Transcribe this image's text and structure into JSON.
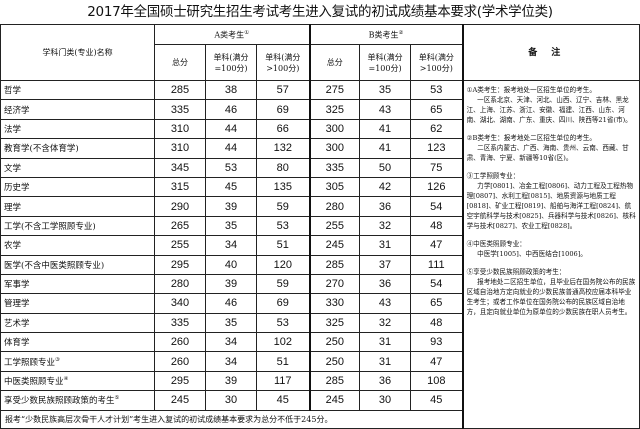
{
  "title": "2017年全国硕士研究生招生考试考生进入复试的初试成绩基本要求(学术学位类)",
  "header": {
    "name_col": "学科门类(专业)名称",
    "group_a": "A类考生",
    "group_a_mark": "①",
    "group_b": "B类考生",
    "group_b_mark": "②",
    "total": "总分",
    "single_100": "单科(满分=100分)",
    "single_gt100": "单科(满分>100分)",
    "notes": "备注"
  },
  "rows": [
    {
      "name": "哲学",
      "mark": "",
      "a": [
        "285",
        "38",
        "57"
      ],
      "b": [
        "275",
        "35",
        "53"
      ]
    },
    {
      "name": "经济学",
      "mark": "",
      "a": [
        "335",
        "46",
        "69"
      ],
      "b": [
        "325",
        "43",
        "65"
      ]
    },
    {
      "name": "法学",
      "mark": "",
      "a": [
        "310",
        "44",
        "66"
      ],
      "b": [
        "300",
        "41",
        "62"
      ]
    },
    {
      "name": "教育学(不含体育学)",
      "mark": "",
      "a": [
        "310",
        "44",
        "132"
      ],
      "b": [
        "300",
        "41",
        "123"
      ]
    },
    {
      "name": "文学",
      "mark": "",
      "a": [
        "345",
        "53",
        "80"
      ],
      "b": [
        "335",
        "50",
        "75"
      ]
    },
    {
      "name": "历史学",
      "mark": "",
      "a": [
        "315",
        "45",
        "135"
      ],
      "b": [
        "305",
        "42",
        "126"
      ]
    },
    {
      "name": "理学",
      "mark": "",
      "a": [
        "290",
        "39",
        "59"
      ],
      "b": [
        "280",
        "36",
        "54"
      ]
    },
    {
      "name": "工学(不含工学照顾专业)",
      "mark": "",
      "a": [
        "265",
        "35",
        "53"
      ],
      "b": [
        "255",
        "32",
        "48"
      ]
    },
    {
      "name": "农学",
      "mark": "",
      "a": [
        "255",
        "34",
        "51"
      ],
      "b": [
        "245",
        "31",
        "47"
      ]
    },
    {
      "name": "医学(不含中医类照顾专业)",
      "mark": "",
      "a": [
        "295",
        "40",
        "120"
      ],
      "b": [
        "285",
        "37",
        "111"
      ]
    },
    {
      "name": "军事学",
      "mark": "",
      "a": [
        "280",
        "39",
        "59"
      ],
      "b": [
        "270",
        "36",
        "54"
      ]
    },
    {
      "name": "管理学",
      "mark": "",
      "a": [
        "340",
        "46",
        "69"
      ],
      "b": [
        "330",
        "43",
        "65"
      ]
    },
    {
      "name": "艺术学",
      "mark": "",
      "a": [
        "335",
        "35",
        "53"
      ],
      "b": [
        "325",
        "32",
        "48"
      ]
    },
    {
      "name": "体育学",
      "mark": "",
      "a": [
        "260",
        "34",
        "102"
      ],
      "b": [
        "250",
        "31",
        "93"
      ]
    },
    {
      "name": "工学照顾专业",
      "mark": "③",
      "a": [
        "260",
        "34",
        "51"
      ],
      "b": [
        "250",
        "31",
        "47"
      ]
    },
    {
      "name": "中医类照顾专业",
      "mark": "④",
      "a": [
        "295",
        "39",
        "117"
      ],
      "b": [
        "285",
        "36",
        "108"
      ]
    },
    {
      "name": "享受少数民族照顾政策的考生",
      "mark": "⑤",
      "a": [
        "245",
        "30",
        "45"
      ],
      "b": [
        "245",
        "30",
        "45"
      ]
    }
  ],
  "footer": "报考“少数民族高层次骨干人才计划”考生进入复试的初试成绩基本要求为总分不低于245分。",
  "notes": [
    {
      "head": "①A类考生：报考地处一区招生单位的考生。",
      "body": "一区系北京、天津、河北、山西、辽宁、吉林、黑龙江、上海、江苏、浙江、安徽、福建、江西、山东、河南、湖北、湖南、广东、重庆、四川、陕西等21省(市)。"
    },
    {
      "head": "②B类考生：报考地处二区招生单位的考生。",
      "body": "二区系内蒙古、广西、海南、贵州、云南、西藏、甘肃、青海、宁夏、新疆等10省(区)。"
    },
    {
      "head": "③工学照顾专业：",
      "body": "力学[0801]、冶金工程[0806]、动力工程及工程热物理[0807]、水利工程[0815]、地质资源与地质工程[0818]、矿业工程[0819]、船舶与海洋工程[0824]、航空宇航科学与技术[0825]、兵器科学与技术[0826]、核科学与技术[0827]、农业工程[0828]。"
    },
    {
      "head": "④中医类照顾专业：",
      "body": "中医学[1005]、中西医结合[1006]。"
    },
    {
      "head": "⑤享受少数民族照顾政策的考生：",
      "body": "报考地处二区招生单位，且毕业后在国务院公布的民族区域自治地方定向就业的少数民族普通高校应届本科毕业生考生；或者工作单位在国务院公布的民族区域自治地方，且定向就业单位为原单位的少数民族在职人员考生。"
    }
  ]
}
